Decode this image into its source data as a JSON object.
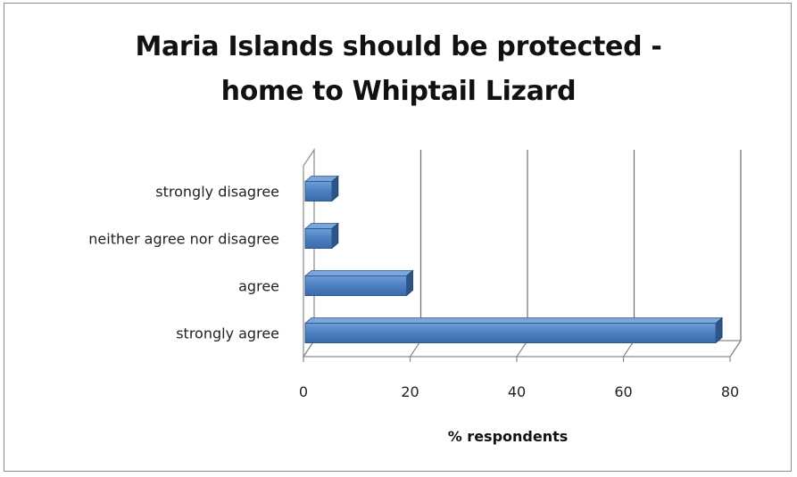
{
  "chart_data": {
    "type": "bar",
    "orientation": "horizontal",
    "title_lines": [
      "Maria Islands should be protected -",
      "home to Whiptail Lizard"
    ],
    "categories": [
      "strongly disagree",
      "neither agree nor disagree",
      "agree",
      "strongly agree"
    ],
    "values": [
      4,
      4,
      18,
      76
    ],
    "xlabel": "% respondents",
    "ylabel": "",
    "xlim": [
      0,
      80
    ],
    "xticks": [
      0,
      20,
      40,
      60,
      80
    ],
    "grid": true,
    "style": "3d",
    "legend": "none",
    "bar_color": "#4a7ebb"
  }
}
